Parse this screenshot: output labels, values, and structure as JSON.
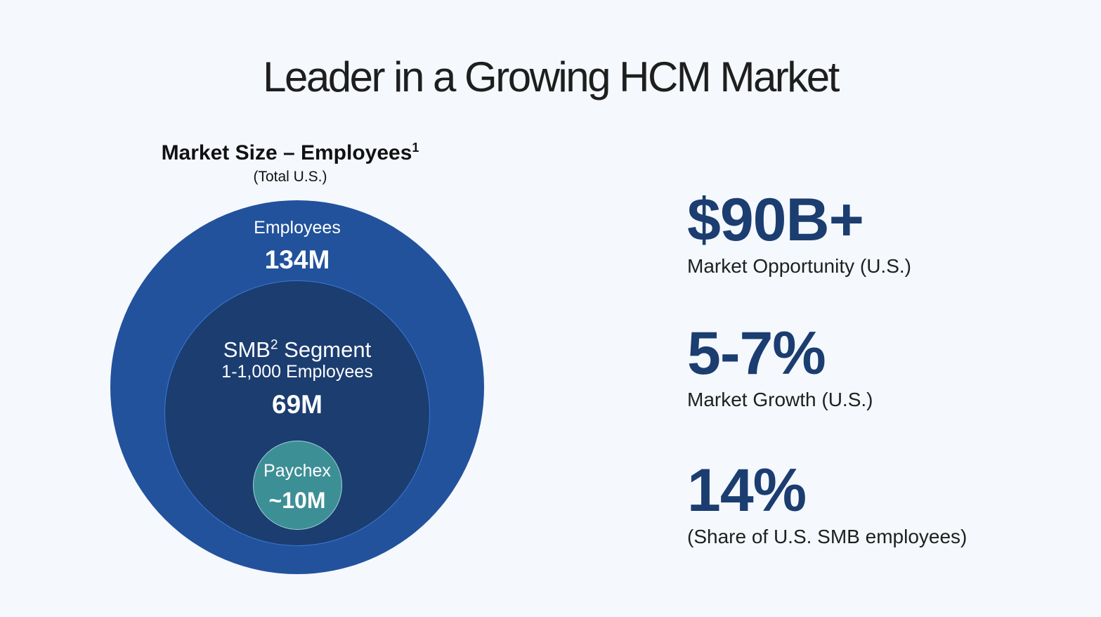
{
  "title": "Leader in a Growing HCM Market",
  "diagram": {
    "heading": "Market Size – Employees",
    "heading_sup": "1",
    "subheading": "(Total U.S.)",
    "outer": {
      "label": "Employees",
      "value": "134M"
    },
    "middle": {
      "label_pre": "SMB",
      "label_sup": "2",
      "label_post": " Segment",
      "sublabel": "1-1,000 Employees",
      "value": "69M"
    },
    "inner": {
      "label": "Paychex",
      "value": "~10M"
    }
  },
  "stats": [
    {
      "value": "$90B+",
      "label": "Market Opportunity (U.S.)"
    },
    {
      "value": "5-7%",
      "label": "Market Growth (U.S.)"
    },
    {
      "value": "14%",
      "label": "(Share of U.S. SMB employees)"
    }
  ],
  "colors": {
    "background": "#f5f8fd",
    "outer_circle": "#22529c",
    "middle_circle": "#1b3d70",
    "inner_circle": "#3d8f96",
    "stat_value": "#1b3d70"
  }
}
